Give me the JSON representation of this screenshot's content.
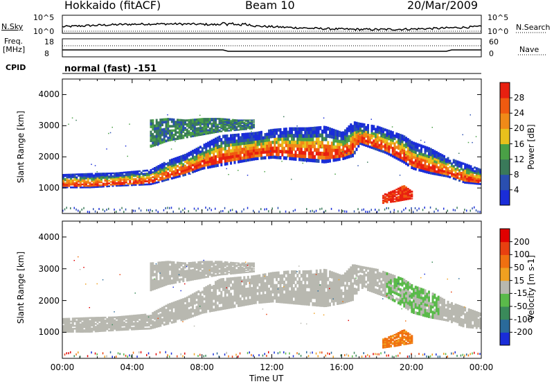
{
  "header": {
    "station": "Hokkaido (fitACF)",
    "beam": "Beam 10",
    "date": "20/Mar/2009"
  },
  "side_labels": {
    "nsky": "N.Sky",
    "nsearch": "N.Search",
    "freq_line1": "Freq.",
    "freq_line2": "[MHz]",
    "nave": "Nave",
    "cpid": "CPID",
    "cpid_value": "normal (fast) -151"
  },
  "small_ticks": {
    "noise_top": "10^5",
    "noise_bottom": "10^0",
    "freq_top": "18",
    "freq_bottom": "8",
    "nave_top": "60",
    "nave_bottom": "0"
  },
  "colors": {
    "power": [
      "#1a2dd8",
      "#2a4fb0",
      "#3a7a5a",
      "#4aa046",
      "#e8c01c",
      "#f08a18",
      "#f05a10",
      "#e82010"
    ],
    "velocity": [
      "#1a2dd8",
      "#2a6a9a",
      "#3a8a5a",
      "#5aba4a",
      "#b8b8b0",
      "#f0a020",
      "#f07010",
      "#e84010",
      "#e00000"
    ],
    "scatter_gray": "#b8b8b0"
  },
  "chart_data": [
    {
      "type": "heatmap",
      "title": "Power",
      "ylabel": "Slant Range [km]",
      "xlabel": "",
      "xlim": [
        "00:00",
        "24:00"
      ],
      "ylim": [
        180,
        4500
      ],
      "x_ticks": [
        "00:00",
        "04:00",
        "08:00",
        "12:00",
        "16:00",
        "20:00",
        "00:00"
      ],
      "y_ticks": [
        1000,
        2000,
        3000,
        4000
      ],
      "colorbar": {
        "label": "Power [dB]",
        "range": [
          0,
          32
        ],
        "ticks": [
          4,
          8,
          12,
          16,
          20,
          24,
          28
        ]
      },
      "bands": [
        {
          "name": "ionospheric",
          "points": [
            [
              0,
              1000,
              1450
            ],
            [
              1.5,
              1000,
              1480
            ],
            [
              3,
              1050,
              1500
            ],
            [
              5,
              1100,
              1600
            ],
            [
              6,
              1250,
              1900
            ],
            [
              7,
              1400,
              2100
            ],
            [
              8,
              1600,
              2400
            ],
            [
              9,
              1700,
              2700
            ],
            [
              10,
              1800,
              2750
            ],
            [
              11,
              1900,
              2800
            ],
            [
              12,
              1950,
              2900
            ],
            [
              13,
              1900,
              2950
            ],
            [
              14,
              1850,
              2950
            ],
            [
              15,
              1800,
              3000
            ],
            [
              16,
              1900,
              2800
            ],
            [
              16.6,
              2000,
              3150
            ],
            [
              17,
              2400,
              3100
            ],
            [
              18,
              2200,
              3000
            ],
            [
              18.5,
              2100,
              2900
            ],
            [
              19.5,
              1800,
              2700
            ],
            [
              20,
              1600,
              2500
            ],
            [
              21,
              1450,
              2300
            ],
            [
              22,
              1350,
              2000
            ],
            [
              23,
              1150,
              1800
            ],
            [
              24,
              1100,
              1600
            ]
          ]
        },
        {
          "name": "upper",
          "points": [
            [
              5,
              2300,
              3200
            ],
            [
              6,
              2500,
              3250
            ],
            [
              7,
              2600,
              3200
            ],
            [
              8,
              2700,
              3250
            ],
            [
              9,
              2800,
              3250
            ],
            [
              10,
              2850,
              3200
            ],
            [
              11,
              2900,
              3200
            ]
          ]
        },
        {
          "name": "ground",
          "points": [
            [
              18.3,
              500,
              800
            ],
            [
              19,
              550,
              950
            ],
            [
              19.5,
              600,
              1100
            ],
            [
              20,
              650,
              900
            ]
          ]
        }
      ]
    },
    {
      "type": "heatmap",
      "title": "Velocity",
      "ylabel": "Slant Range [km]",
      "xlabel": "Time UT",
      "xlim": [
        "00:00",
        "24:00"
      ],
      "ylim": [
        180,
        4500
      ],
      "x_ticks": [
        "00:00",
        "04:00",
        "08:00",
        "12:00",
        "16:00",
        "20:00",
        "00:00"
      ],
      "y_ticks": [
        1000,
        2000,
        3000,
        4000
      ],
      "colorbar": {
        "label": "Velocity [m s-1]",
        "range": [
          -250,
          250
        ],
        "ticks": [
          "200",
          "100",
          "50",
          "15",
          "-15",
          "-50",
          "-100",
          "-200"
        ]
      }
    }
  ]
}
